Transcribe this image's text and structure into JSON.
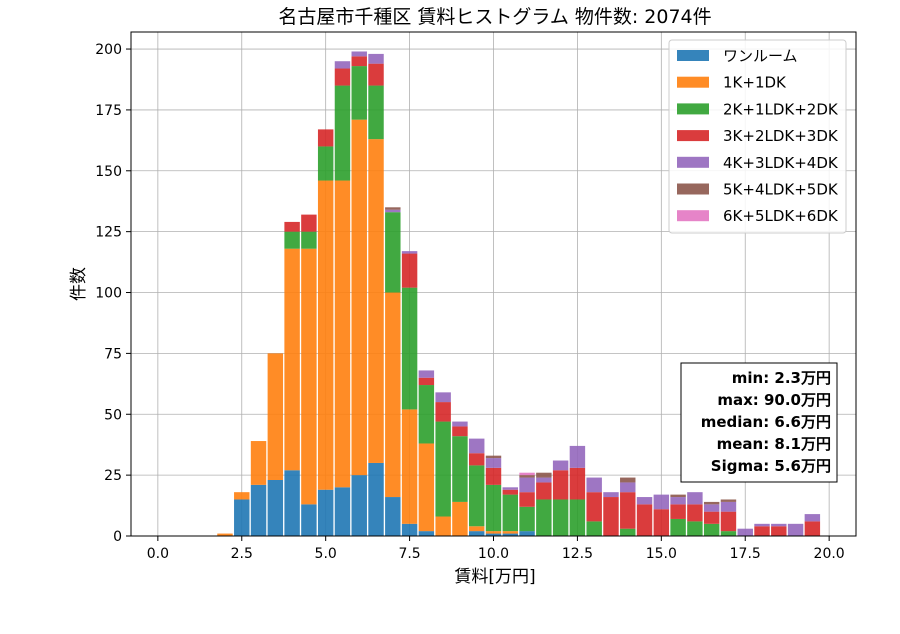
{
  "chart_data": {
    "type": "bar",
    "stacked": true,
    "title": "名古屋市千種区 賃料ヒストグラム 物件数: 2074件",
    "xlabel": "賃料[万円]",
    "ylabel": "件数",
    "xlim": [
      -0.8,
      20.8
    ],
    "ylim": [
      0,
      207
    ],
    "xticks": [
      0,
      2.5,
      5,
      7.5,
      10,
      12.5,
      15,
      17.5,
      20
    ],
    "xtick_labels": [
      "0.0",
      "2.5",
      "5.0",
      "7.5",
      "10.0",
      "12.5",
      "15.0",
      "17.5",
      "20.0"
    ],
    "yticks": [
      0,
      25,
      50,
      75,
      100,
      125,
      150,
      175,
      200
    ],
    "ytick_labels": [
      "0",
      "25",
      "50",
      "75",
      "100",
      "125",
      "150",
      "175",
      "200"
    ],
    "grid": true,
    "legend_position": "top-right",
    "bin_width": 0.5,
    "x": [
      2,
      2.5,
      3,
      3.5,
      4,
      4.5,
      5,
      5.5,
      6,
      6.5,
      7,
      7.5,
      8,
      8.5,
      9,
      9.5,
      10,
      10.5,
      11,
      11.5,
      12,
      12.5,
      13,
      13.5,
      14,
      14.5,
      15,
      15.5,
      16,
      16.5,
      17,
      17.5,
      18,
      18.5,
      19,
      19.5
    ],
    "series": [
      {
        "name": "ワンルーム",
        "color": "#1f77b4",
        "values": [
          0,
          15,
          21,
          23,
          27,
          13,
          19,
          20,
          25,
          30,
          16,
          5,
          2,
          0,
          0,
          2,
          1,
          1,
          2,
          0,
          0,
          0,
          0,
          0,
          0,
          0,
          0,
          0,
          0,
          0,
          0,
          0,
          0,
          0,
          0,
          0
        ]
      },
      {
        "name": "1K+1DK",
        "color": "#ff7f0e",
        "values": [
          1,
          3,
          18,
          52,
          91,
          105,
          127,
          126,
          146,
          133,
          84,
          47,
          36,
          8,
          14,
          2,
          1,
          1,
          0,
          0,
          0,
          0,
          0,
          0,
          0,
          0,
          0,
          0,
          0,
          0,
          0,
          0,
          0,
          0,
          0,
          0
        ]
      },
      {
        "name": "2K+1LDK+2DK",
        "color": "#2ca02c",
        "values": [
          0,
          0,
          0,
          0,
          7,
          7,
          14,
          39,
          22,
          22,
          33,
          50,
          24,
          39,
          27,
          25,
          19,
          15,
          10,
          15,
          15,
          15,
          6,
          0,
          3,
          0,
          0,
          7,
          6,
          5,
          2,
          0,
          0,
          0,
          0,
          0
        ]
      },
      {
        "name": "3K+2LDK+3DK",
        "color": "#d62728",
        "values": [
          0,
          0,
          0,
          0,
          4,
          7,
          7,
          7,
          4,
          9,
          0,
          14,
          3,
          8,
          4,
          5,
          7,
          2,
          6,
          7,
          12,
          13,
          12,
          16,
          15,
          13,
          11,
          6,
          7,
          5,
          8,
          0,
          4,
          4,
          0,
          6
        ]
      },
      {
        "name": "4K+3LDK+4DK",
        "color": "#9467bd",
        "values": [
          0,
          0,
          0,
          0,
          0,
          0,
          0,
          3,
          2,
          4,
          1,
          1,
          3,
          4,
          2,
          6,
          4,
          1,
          6,
          2,
          4,
          9,
          6,
          2,
          4,
          3,
          6,
          3,
          5,
          3,
          4,
          3,
          1,
          1,
          5,
          3
        ]
      },
      {
        "name": "5K+4LDK+5DK",
        "color": "#8c564b",
        "values": [
          0,
          0,
          0,
          0,
          0,
          0,
          0,
          0,
          0,
          0,
          1,
          0,
          0,
          0,
          0,
          0,
          1,
          0,
          1,
          2,
          0,
          0,
          0,
          0,
          2,
          0,
          0,
          1,
          0,
          1,
          1,
          0,
          0,
          0,
          0,
          0
        ]
      },
      {
        "name": "6K+5LDK+6DK",
        "color": "#e377c2",
        "values": [
          0,
          0,
          0,
          0,
          0,
          0,
          0,
          0,
          0,
          0,
          0,
          0,
          0,
          0,
          0,
          0,
          0,
          0,
          1,
          0,
          0,
          0,
          0,
          0,
          0,
          0,
          0,
          0,
          0,
          0,
          0,
          0,
          0,
          0,
          0,
          0
        ]
      }
    ],
    "annotations": [
      "min: 2.3万円",
      "max: 90.0万円",
      "median: 6.6万円",
      "mean: 8.1万円",
      "Sigma: 5.6万円"
    ]
  }
}
